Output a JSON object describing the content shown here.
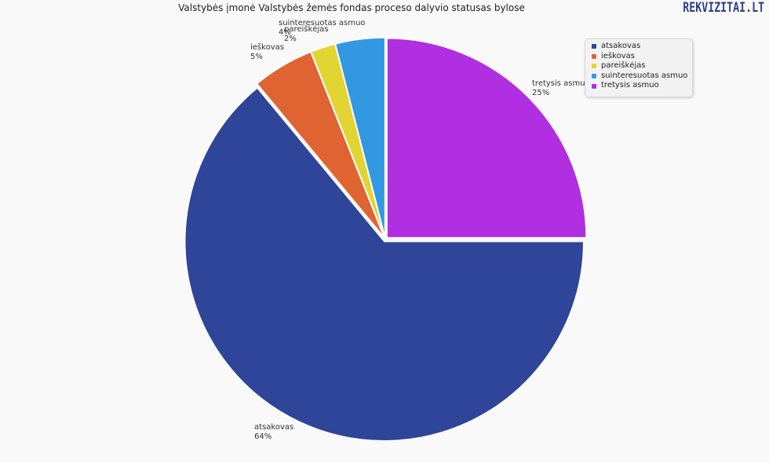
{
  "title": "Valstybės įmonė Valstybės žemės fondas proceso dalyvio statusas bylose",
  "brand": {
    "name": "REKVIZITAI",
    "suffix": ".LT"
  },
  "colors": {
    "atsakovas": "#2e4599",
    "ieskovas": "#e06432",
    "pareiskejas": "#e2d431",
    "suinteresuotas": "#3398e2",
    "tretysis": "#b02fe1"
  },
  "chart_data": {
    "type": "pie",
    "title": "Valstybės įmonė Valstybės žemės fondas proceso dalyvio statusas bylose",
    "legend_position": "top-right",
    "slices": [
      {
        "name": "tretysis asmuo",
        "value": 25,
        "label": "25%",
        "color": "#b02fe1"
      },
      {
        "name": "atsakovas",
        "value": 64,
        "label": "64%",
        "color": "#2e4599"
      },
      {
        "name": "ieškovas",
        "value": 5,
        "label": "5%",
        "color": "#e06432"
      },
      {
        "name": "pareiškėjas",
        "value": 2,
        "label": "2%",
        "color": "#e2d431"
      },
      {
        "name": "suinteresuotas asmuo",
        "value": 4,
        "label": "4%",
        "color": "#3398e2"
      }
    ]
  },
  "legend": {
    "items": [
      {
        "label": "atsakovas",
        "color": "#2e4599"
      },
      {
        "label": "ieškovas",
        "color": "#e06432"
      },
      {
        "label": "pareiškėjas",
        "color": "#e2d431"
      },
      {
        "label": "suinteresuotas asmuo",
        "color": "#3398e2"
      },
      {
        "label": "tretysis asmuo",
        "color": "#b02fe1"
      }
    ]
  }
}
